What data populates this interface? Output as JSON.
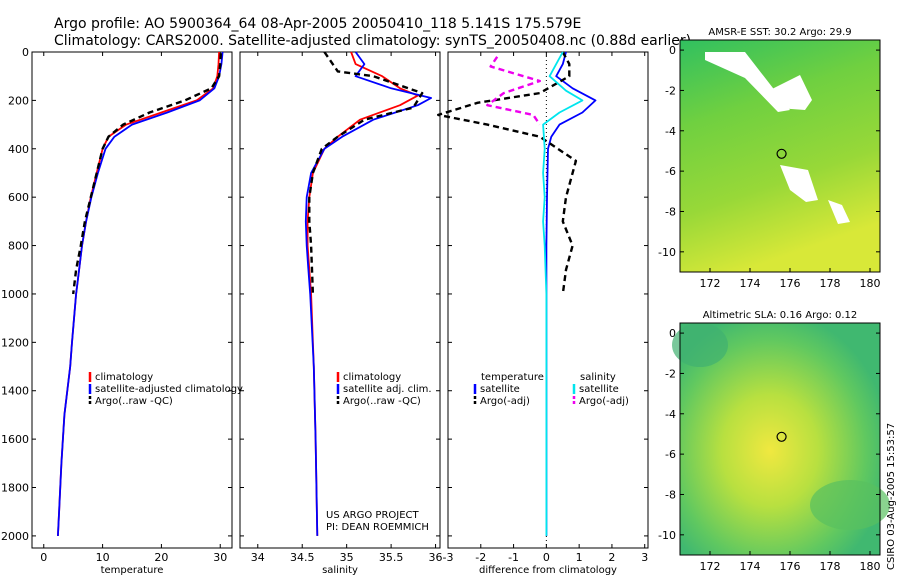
{
  "title": {
    "line1": "Argo profile: AO 5900364_64 08-Apr-2005 20050410_118 5.141S 175.579E",
    "line2": "Climatology: CARS2000. Satellite-adjusted climatology: synTS_20050408.nc (0.88d earlier)"
  },
  "credit": "CSIRO 03-Aug-2005 15:53:57",
  "colors": {
    "climatology": "#ff0000",
    "satellite": "#0000ff",
    "argo": "#000000",
    "salinity_satellite": "#00e5ee",
    "salinity_argo": "#ee00ee"
  },
  "chart_data": [
    {
      "type": "line",
      "name": "temperature",
      "xlabel": "temperature",
      "ylabel": "",
      "xlim": [
        -2,
        32
      ],
      "ylim": [
        2050,
        0
      ],
      "xticks": [
        0,
        10,
        20,
        30
      ],
      "yticks": [
        0,
        200,
        400,
        600,
        800,
        1000,
        1200,
        1400,
        1600,
        1800,
        2000
      ],
      "legend": {
        "position": "bottom-right",
        "entries": [
          "climatology",
          "satellite-adjusted climatology",
          "Argo(..raw -QC)"
        ]
      },
      "series": [
        {
          "name": "climatology",
          "color": "#ff0000",
          "dashed": false,
          "x": [
            29.8,
            29.7,
            29.5,
            28.8,
            26,
            20,
            14,
            11,
            10,
            9,
            8,
            7.2,
            6.5,
            6,
            5.5,
            4.8,
            4.5,
            4,
            3.5,
            3,
            2.6,
            2.4
          ],
          "y": [
            0,
            50,
            100,
            150,
            200,
            250,
            300,
            350,
            400,
            500,
            600,
            700,
            800,
            900,
            1000,
            1200,
            1300,
            1400,
            1500,
            1700,
            1900,
            2000
          ]
        },
        {
          "name": "satellite-adjusted climatology",
          "color": "#0000ff",
          "dashed": false,
          "x": [
            30.4,
            30.2,
            29.8,
            29,
            26.5,
            21,
            15,
            12,
            10.5,
            9.2,
            8.1,
            7.2,
            6.5,
            6,
            5.5,
            4.8,
            4.5,
            4,
            3.5,
            3,
            2.6,
            2.4
          ],
          "y": [
            0,
            50,
            100,
            150,
            200,
            250,
            300,
            350,
            400,
            500,
            600,
            700,
            800,
            900,
            1000,
            1200,
            1300,
            1400,
            1500,
            1700,
            1900,
            2000
          ]
        },
        {
          "name": "Argo(..raw -QC)",
          "color": "#000000",
          "dashed": true,
          "x": [
            30.1,
            30,
            29.8,
            28.5,
            24,
            18,
            13.5,
            11,
            10,
            9,
            8,
            7,
            6.3,
            5.5,
            5
          ],
          "y": [
            5,
            50,
            100,
            150,
            200,
            250,
            300,
            350,
            400,
            500,
            600,
            700,
            800,
            900,
            1000
          ]
        }
      ]
    },
    {
      "type": "line",
      "name": "salinity",
      "xlabel": "salinity",
      "ylabel": "",
      "xlim": [
        33.8,
        36.05
      ],
      "ylim": [
        2050,
        0
      ],
      "xticks": [
        34,
        34.5,
        35,
        35.5,
        36
      ],
      "yticks": [
        0,
        200,
        400,
        600,
        800,
        1000,
        1200,
        1400,
        1600,
        1800,
        2000
      ],
      "legend": {
        "position": "bottom-right",
        "entries": [
          "climatology",
          "satellite adj. clim.",
          "Argo(..raw -QC)"
        ]
      },
      "annotation": [
        "US ARGO PROJECT",
        "PI: DEAN ROEMMICH"
      ],
      "series": [
        {
          "name": "climatology",
          "color": "#ff0000",
          "dashed": false,
          "x": [
            35.05,
            35.1,
            35.4,
            35.6,
            35.8,
            35.6,
            35.15,
            34.9,
            34.75,
            34.62,
            34.58,
            34.56,
            34.56,
            34.58,
            34.6,
            34.63,
            34.65,
            34.67
          ],
          "y": [
            0,
            50,
            100,
            150,
            180,
            220,
            280,
            350,
            400,
            500,
            600,
            700,
            800,
            900,
            1000,
            1300,
            1600,
            2000
          ]
        },
        {
          "name": "satellite adj. clim.",
          "color": "#0000ff",
          "dashed": false,
          "x": [
            35.1,
            35.2,
            35.1,
            35.5,
            35.95,
            35.8,
            35.3,
            34.95,
            34.75,
            34.6,
            34.55,
            34.54,
            34.55,
            34.57,
            34.59,
            34.63,
            34.65,
            34.67
          ],
          "y": [
            0,
            50,
            100,
            150,
            190,
            220,
            280,
            350,
            400,
            500,
            600,
            700,
            800,
            900,
            1000,
            1300,
            1600,
            2000
          ]
        },
        {
          "name": "Argo(..raw -QC)",
          "color": "#000000",
          "dashed": true,
          "x": [
            34.75,
            34.9,
            35.3,
            35.85,
            35.75,
            35.2,
            34.9,
            34.72,
            34.62,
            34.58,
            34.58,
            34.6,
            34.62
          ],
          "y": [
            0,
            80,
            100,
            170,
            230,
            280,
            350,
            400,
            500,
            600,
            700,
            800,
            1000
          ]
        }
      ]
    },
    {
      "type": "line",
      "name": "difference",
      "xlabel": "difference from climatology",
      "ylabel": "",
      "xlim": [
        -3,
        3.1
      ],
      "ylim": [
        2050,
        0
      ],
      "xticks": [
        -3,
        -2,
        -1,
        0,
        1,
        2,
        3
      ],
      "yticks": [
        0,
        200,
        400,
        600,
        800,
        1000,
        1200,
        1400,
        1600,
        1800,
        2000
      ],
      "legend": {
        "position": "bottom",
        "entries": [
          "temperature",
          "satellite",
          "Argo(-adj)",
          "salinity",
          "satellite",
          "Argo(-adj)"
        ]
      },
      "series": [
        {
          "name": "temperature satellite",
          "color": "#0000ff",
          "dashed": false,
          "x": [
            0.6,
            0.5,
            0.3,
            0.8,
            1.5,
            1.1,
            0.4,
            0.15,
            0.05,
            0.02,
            0,
            0,
            0,
            0
          ],
          "y": [
            0,
            50,
            100,
            150,
            200,
            250,
            300,
            350,
            400,
            600,
            800,
            1000,
            1500,
            2000
          ]
        },
        {
          "name": "temperature Argo(-adj)",
          "color": "#000000",
          "dashed": true,
          "x": [
            0.5,
            0.7,
            0.7,
            -0.2,
            -2.1,
            -3.3,
            -1.8,
            -0.2,
            0.9,
            0.6,
            0.5,
            0.8,
            0.6,
            0.5
          ],
          "y": [
            0,
            50,
            100,
            170,
            210,
            260,
            300,
            350,
            450,
            600,
            700,
            800,
            900,
            1000
          ]
        },
        {
          "name": "salinity satellite",
          "color": "#00e5ee",
          "dashed": false,
          "x": [
            0.5,
            0.3,
            0.1,
            0.6,
            1.1,
            0.4,
            -0.1,
            -0.05,
            -0.1,
            -0.05,
            -0.1,
            -0.05,
            0,
            0,
            0
          ],
          "y": [
            0,
            50,
            100,
            160,
            200,
            250,
            300,
            400,
            500,
            600,
            700,
            800,
            1000,
            1500,
            2000
          ]
        },
        {
          "name": "salinity Argo(-adj)",
          "color": "#ee00ee",
          "dashed": true,
          "x": [
            -1.5,
            -1.7,
            -0.2,
            -1.3,
            -1.8,
            -0.4,
            -0.2
          ],
          "y": [
            20,
            60,
            120,
            170,
            220,
            260,
            300
          ]
        }
      ]
    },
    {
      "type": "heatmap",
      "name": "AMSR-E SST map",
      "title": "AMSR-E SST: 30.2 Argo: 29.9",
      "xlim": [
        170.5,
        180.5
      ],
      "ylim": [
        -11,
        0.5
      ],
      "xticks": [
        172,
        174,
        176,
        178,
        180
      ],
      "yticks": [
        0,
        -2,
        -4,
        -6,
        -8,
        -10
      ],
      "marker": {
        "lon": 175.579,
        "lat": -5.141
      }
    },
    {
      "type": "heatmap",
      "name": "Altimetric SLA map",
      "title": "Altimetric SLA: 0.16 Argo: 0.12",
      "xlim": [
        170.5,
        180.5
      ],
      "ylim": [
        -11,
        0.5
      ],
      "xticks": [
        172,
        174,
        176,
        178,
        180
      ],
      "yticks": [
        0,
        -2,
        -4,
        -6,
        -8,
        -10
      ],
      "marker": {
        "lon": 175.579,
        "lat": -5.141
      }
    }
  ]
}
